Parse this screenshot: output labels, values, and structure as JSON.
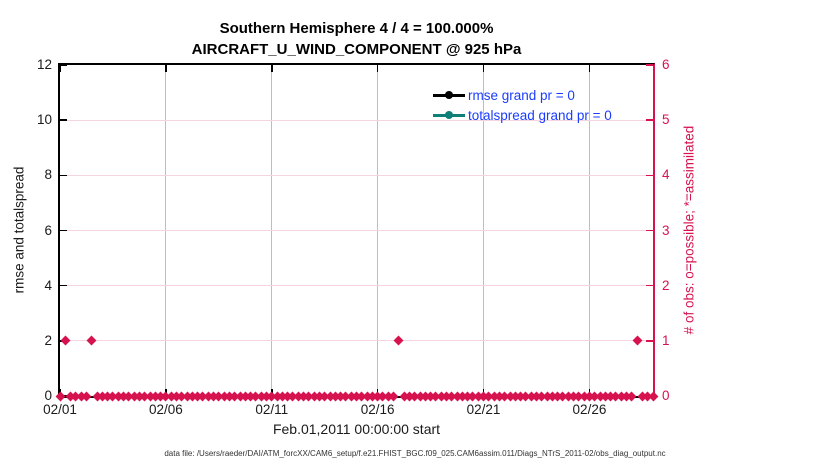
{
  "figure": {
    "title_line1": "Southern Hemisphere 4 / 4 = 100.000%",
    "title_line2": "AIRCRAFT_U_WIND_COMPONENT @ 925 hPa",
    "xlabel": "Feb.01,2011 00:00:00 start",
    "footer": "data file: /Users/raeder/DAI/ATM_forcXX/CAM6_setup/f.e21.FHIST_BGC.f09_025.CAM6assim.011/Diags_NTrS_2011-02/obs_diag_output.nc"
  },
  "legend": {
    "text_color": "#1a3cff",
    "entries": [
      {
        "label": "rmse grand pr = 0",
        "color": "#000000",
        "icon": "line-with-dot"
      },
      {
        "label": "totalspread grand pr = 0",
        "color": "#0f8078",
        "icon": "line-with-dot"
      }
    ]
  },
  "chart_data": {
    "type": "scatter",
    "title": "Southern Hemisphere 4 / 4 = 100.000%  |  AIRCRAFT_U_WIND_COMPONENT @ 925 hPa",
    "xlabel": "Feb.01,2011 00:00:00 start",
    "x_axis": {
      "range_days": [
        0,
        28
      ],
      "tick_days": [
        0,
        5,
        10,
        15,
        20,
        25
      ],
      "tick_labels": [
        "02/01",
        "02/06",
        "02/11",
        "02/16",
        "02/21",
        "02/26"
      ],
      "grid_days": [
        5,
        10,
        15,
        20,
        25
      ]
    },
    "y_left": {
      "label": "rmse and totalspread",
      "range": [
        0,
        12
      ],
      "ticks": [
        0,
        2,
        4,
        6,
        8,
        10,
        12
      ],
      "grid_values": [
        2,
        4,
        6,
        8,
        10
      ],
      "color": "#1a1a1a"
    },
    "y_right": {
      "label": "# of obs: o=possible; *=assimilated",
      "range": [
        0,
        6
      ],
      "ticks": [
        0,
        1,
        2,
        3,
        4,
        5,
        6
      ],
      "color": "#d6134f"
    },
    "grid": {
      "vertical_color": "#bdbdbd",
      "horizontal_color": "#f5d3e0"
    },
    "series": [
      {
        "name": "rmse grand pr = 0",
        "color": "#000000",
        "axis": "left",
        "points": []
      },
      {
        "name": "totalspread grand pr = 0",
        "color": "#0f8078",
        "axis": "left",
        "points": []
      },
      {
        "name": "# of obs (possible/assimilated)",
        "color": "#d6134f",
        "axis": "right",
        "marker": "diamond",
        "bin_hours": 6,
        "n_bins": 113,
        "default_count": 0,
        "count1_bin_days": [
          0.25,
          1.5,
          16.0,
          27.25
        ]
      }
    ]
  }
}
